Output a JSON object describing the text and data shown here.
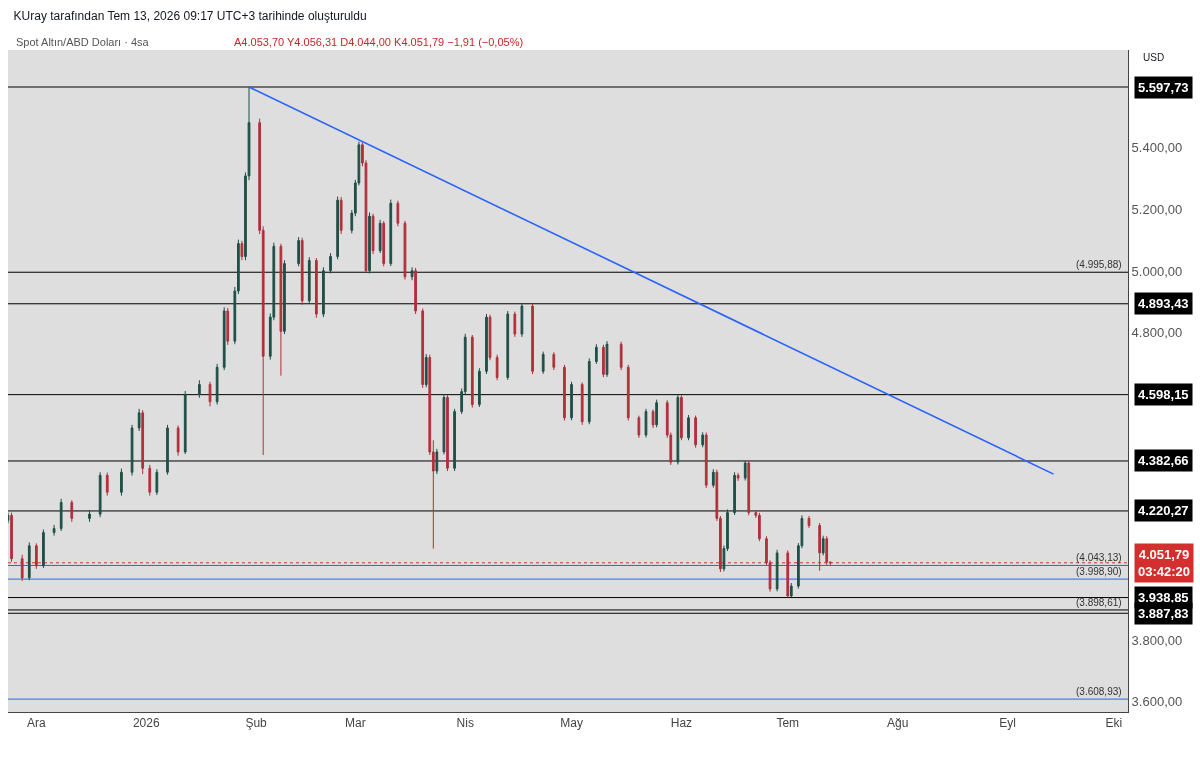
{
  "chart_data": {
    "type": "candlestick",
    "title": "KUray tarafından Tem 13, 2026 09:17 UTC+3 tarihinde oluşturuldu",
    "subtitle": "Spot Altın/ABD Doları · 4sa",
    "annotations": [
      "A4.053,70 Y4.056,31 D4.044,00 K4.051,79 −1,91 (−0,05%)",
      "USD",
      {
        "text": "(4.995,88)",
        "x": "2026-10-04",
        "y": 4995.88
      },
      {
        "text": "(4.043,13)",
        "x": "2026-10-04",
        "y": 4043.13
      },
      {
        "text": "(3.998,90)",
        "x": "2026-10-04",
        "y": 3998.9
      },
      {
        "text": "(3.898,61)",
        "x": "2026-10-04",
        "y": 3898.61
      },
      {
        "text": "(3.608,93)",
        "x": "2026-10-04",
        "y": 3608.93
      }
    ],
    "x": [
      "2025-11-23",
      "2025-11-24",
      "2025-11-27",
      "2025-11-29",
      "2025-12-01",
      "2025-12-03",
      "2025-12-06",
      "2025-12-08",
      "2025-12-11",
      "2025-12-16",
      "2025-12-19",
      "2025-12-21",
      "2025-12-25",
      "2025-12-28",
      "2025-12-30",
      "2025-12-31",
      "2026-01-02",
      "2026-01-04",
      "2026-01-07",
      "2026-01-10",
      "2026-01-12",
      "2026-01-16",
      "2026-01-19",
      "2026-01-21",
      "2026-01-23",
      "2026-01-24",
      "2026-01-26",
      "2026-01-27",
      "2026-01-28",
      "2026-01-29",
      "2026-01-30",
      "2026-02-02",
      "2026-02-03",
      "2026-02-05",
      "2026-02-06",
      "2026-02-08",
      "2026-02-09",
      "2026-02-13",
      "2026-02-14",
      "2026-02-16",
      "2026-02-18",
      "2026-02-20",
      "2026-02-22",
      "2026-02-24",
      "2026-02-25",
      "2026-02-28",
      "2026-03-01",
      "2026-03-02",
      "2026-03-03",
      "2026-03-04",
      "2026-03-05",
      "2026-03-06",
      "2026-03-08",
      "2026-03-09",
      "2026-03-11",
      "2026-03-13",
      "2026-03-15",
      "2026-03-17",
      "2026-03-18",
      "2026-03-20",
      "2026-03-21",
      "2026-03-22",
      "2026-03-23",
      "2026-03-24",
      "2026-03-26",
      "2026-03-27",
      "2026-03-29",
      "2026-03-31",
      "2026-04-01",
      "2026-04-03",
      "2026-04-05",
      "2026-04-07",
      "2026-04-08",
      "2026-04-10",
      "2026-04-13",
      "2026-04-15",
      "2026-04-17",
      "2026-04-20",
      "2026-04-23",
      "2026-04-26",
      "2026-04-29",
      "2026-05-01",
      "2026-05-04",
      "2026-05-06",
      "2026-05-08",
      "2026-05-10",
      "2026-05-11",
      "2026-05-15",
      "2026-05-17",
      "2026-05-20",
      "2026-05-22",
      "2026-05-24",
      "2026-05-25",
      "2026-05-28",
      "2026-05-29",
      "2026-05-31",
      "2026-06-01",
      "2026-06-03",
      "2026-06-05",
      "2026-06-07",
      "2026-06-08",
      "2026-06-10",
      "2026-06-11",
      "2026-06-12",
      "2026-06-13",
      "2026-06-14",
      "2026-06-16",
      "2026-06-17",
      "2026-06-19",
      "2026-06-20",
      "2026-06-22",
      "2026-06-23",
      "2026-06-25",
      "2026-06-26",
      "2026-06-28",
      "2026-07-01",
      "2026-07-02",
      "2026-07-04",
      "2026-07-05",
      "2026-07-07",
      "2026-07-10",
      "2026-07-11",
      "2026-07-12",
      "2026-07-13"
    ],
    "ohlc": [
      [
        4190,
        4215,
        4180,
        4206
      ],
      [
        4206,
        4215,
        4055,
        4065
      ],
      [
        4065,
        4078,
        3993,
        4003
      ],
      [
        4003,
        4118,
        3995,
        4107
      ],
      [
        4107,
        4115,
        4032,
        4042
      ],
      [
        4042,
        4160,
        4035,
        4150
      ],
      [
        4150,
        4175,
        4140,
        4163
      ],
      [
        4163,
        4260,
        4155,
        4248
      ],
      [
        4248,
        4255,
        4185,
        4196
      ],
      [
        4196,
        4222,
        4185,
        4210
      ],
      [
        4210,
        4346,
        4200,
        4336
      ],
      [
        4336,
        4345,
        4270,
        4281
      ],
      [
        4281,
        4358,
        4270,
        4346
      ],
      [
        4346,
        4500,
        4335,
        4490
      ],
      [
        4490,
        4552,
        4480,
        4539
      ],
      [
        4539,
        4548,
        4340,
        4359
      ],
      [
        4359,
        4370,
        4270,
        4281
      ],
      [
        4281,
        4356,
        4272,
        4346
      ],
      [
        4346,
        4500,
        4338,
        4490
      ],
      [
        4490,
        4498,
        4400,
        4412
      ],
      [
        4412,
        4610,
        4405,
        4598
      ],
      [
        4598,
        4645,
        4588,
        4631
      ],
      [
        4631,
        4640,
        4560,
        4575
      ],
      [
        4575,
        4698,
        4566,
        4687
      ],
      [
        4687,
        4882,
        4678,
        4870
      ],
      [
        4870,
        4880,
        4760,
        4772
      ],
      [
        4772,
        4948,
        4762,
        4935
      ],
      [
        4935,
        5102,
        4925,
        5089
      ],
      [
        5089,
        5098,
        5035,
        5047
      ],
      [
        5047,
        5320,
        5035,
        5309
      ],
      [
        5309,
        5597.73,
        5295,
        5482
      ],
      [
        5482,
        5495,
        5120,
        5132
      ],
      [
        5132,
        5145,
        4402,
        4723
      ],
      [
        4723,
        4862,
        4712,
        4850
      ],
      [
        4850,
        5092,
        4840,
        5080
      ],
      [
        5080,
        5088,
        4660,
        4804
      ],
      [
        4804,
        5035,
        4795,
        5024
      ],
      [
        5024,
        5110,
        5015,
        5099
      ],
      [
        5099,
        5108,
        4890,
        4903
      ],
      [
        4903,
        5045,
        4895,
        5034
      ],
      [
        5034,
        5042,
        4848,
        4860
      ],
      [
        4860,
        5012,
        4850,
        5001
      ],
      [
        5001,
        5058,
        4992,
        5047
      ],
      [
        5047,
        5242,
        5038,
        5230
      ],
      [
        5230,
        5240,
        5120,
        5132
      ],
      [
        5132,
        5198,
        5122,
        5188
      ],
      [
        5188,
        5296,
        5178,
        5286
      ],
      [
        5286,
        5420,
        5278,
        5410
      ],
      [
        5410,
        5418,
        5340,
        5351
      ],
      [
        5351,
        5360,
        4995.88,
        5001
      ],
      [
        5001,
        5190,
        4992,
        5178
      ],
      [
        5178,
        5186,
        5055,
        5066
      ],
      [
        5066,
        5166,
        5058,
        5155
      ],
      [
        5155,
        5162,
        5015,
        5024
      ],
      [
        5024,
        5232,
        5016,
        5220
      ],
      [
        5220,
        5228,
        5145,
        5155
      ],
      [
        5155,
        5163,
        4972,
        4981
      ],
      [
        4981,
        5012,
        4970,
        5001
      ],
      [
        5001,
        5010,
        4860,
        4870
      ],
      [
        4870,
        4878,
        4620,
        4631
      ],
      [
        4631,
        4730,
        4622,
        4719
      ],
      [
        4719,
        4728,
        4402,
        4412
      ],
      [
        4412,
        4450,
        4098,
        4350
      ],
      [
        4350,
        4422,
        4340,
        4412
      ],
      [
        4412,
        4600,
        4404,
        4589
      ],
      [
        4589,
        4596,
        4350,
        4359
      ],
      [
        4359,
        4552,
        4350,
        4543
      ],
      [
        4543,
        4618,
        4535,
        4608
      ],
      [
        4608,
        4796,
        4600,
        4785
      ],
      [
        4785,
        4792,
        4556,
        4566
      ],
      [
        4566,
        4684,
        4558,
        4674
      ],
      [
        4674,
        4860,
        4665,
        4850
      ],
      [
        4850,
        4858,
        4710,
        4719
      ],
      [
        4719,
        4728,
        4645,
        4654
      ],
      [
        4654,
        4870,
        4646,
        4860
      ],
      [
        4860,
        4868,
        4786,
        4795
      ],
      [
        4795,
        4893.43,
        4786,
        4886
      ],
      [
        4886,
        4893,
        4665,
        4674
      ],
      [
        4674,
        4738,
        4666,
        4729
      ],
      [
        4729,
        4736,
        4678,
        4687
      ],
      [
        4687,
        4695,
        4514,
        4523
      ],
      [
        4523,
        4640,
        4515,
        4631
      ],
      [
        4631,
        4638,
        4500,
        4510
      ],
      [
        4510,
        4716,
        4502,
        4706
      ],
      [
        4706,
        4762,
        4698,
        4752
      ],
      [
        4752,
        4760,
        4655,
        4664
      ],
      [
        4664,
        4772,
        4656,
        4762
      ],
      [
        4762,
        4770,
        4678,
        4687
      ],
      [
        4687,
        4695,
        4514,
        4523
      ],
      [
        4523,
        4530,
        4458,
        4467
      ],
      [
        4467,
        4552,
        4459,
        4543
      ],
      [
        4543,
        4550,
        4490,
        4500
      ],
      [
        4500,
        4582,
        4492,
        4572
      ],
      [
        4572,
        4580,
        4458,
        4467
      ],
      [
        4467,
        4475,
        4370,
        4379
      ],
      [
        4379,
        4598.15,
        4371,
        4589
      ],
      [
        4589,
        4596,
        4450,
        4458
      ],
      [
        4458,
        4532,
        4450,
        4523
      ],
      [
        4523,
        4530,
        4426,
        4435
      ],
      [
        4435,
        4476,
        4427,
        4467
      ],
      [
        4467,
        4475,
        4295,
        4304
      ],
      [
        4304,
        4356,
        4296,
        4346
      ],
      [
        4346,
        4354,
        4188,
        4196
      ],
      [
        4196,
        4204,
        4022,
        4032
      ],
      [
        4032,
        4108,
        4024,
        4098
      ],
      [
        4098,
        4225,
        4090,
        4215
      ],
      [
        4215,
        4346,
        4207,
        4336
      ],
      [
        4336,
        4344,
        4318,
        4327
      ],
      [
        4327,
        4382.66,
        4319,
        4376
      ],
      [
        4376,
        4384,
        4206,
        4215
      ],
      [
        4215,
        4222,
        4198,
        4206
      ],
      [
        4206,
        4214,
        4122,
        4130
      ],
      [
        4130,
        4138,
        4044,
        4052
      ],
      [
        4052,
        4060,
        3958,
        3967
      ],
      [
        3967,
        4094,
        3959,
        4084
      ],
      [
        4084,
        4092,
        3938.85,
        3944
      ],
      [
        3944,
        3986,
        3940,
        3976
      ],
      [
        3976,
        4116,
        3968,
        4107
      ],
      [
        4107,
        4206,
        4099,
        4196
      ],
      [
        4196,
        4204,
        4165,
        4173
      ],
      [
        4173,
        4181,
        4026,
        4084
      ],
      [
        4084,
        4140,
        4076,
        4130
      ],
      [
        4130,
        4138,
        4045,
        4053.7
      ],
      [
        4053.7,
        4056.31,
        4044.0,
        4051.79
      ]
    ],
    "series": [
      {
        "type": "line",
        "color": "#2962ff",
        "x": [
          "2026-01-30",
          "2026-09-14"
        ],
        "values": [
          5598,
          4340
        ]
      }
    ],
    "ref_lines": [
      {
        "axis": "y",
        "value": 5597.73,
        "label": "5.597,73",
        "color": "#000000"
      },
      {
        "axis": "y",
        "value": 4995.88,
        "color": "#000000"
      },
      {
        "axis": "y",
        "value": 4893.43,
        "label": "4.893,43",
        "color": "#000000"
      },
      {
        "axis": "y",
        "value": 4598.15,
        "label": "4.598,15",
        "color": "#000000"
      },
      {
        "axis": "y",
        "value": 4382.66,
        "label": "4.382,66",
        "color": "#000000"
      },
      {
        "axis": "y",
        "value": 4220.27,
        "label": "4.220,27",
        "color": "#000000"
      },
      {
        "axis": "y",
        "value": 4051.79,
        "label": "4.051,79\n03:42:20",
        "color": "#d32f2f",
        "line_style": "dotted"
      },
      {
        "axis": "y",
        "value": 4043.13,
        "color": "#2962ff"
      },
      {
        "axis": "y",
        "value": 3998.9,
        "color": "#2962ff"
      },
      {
        "axis": "y",
        "value": 3938.85,
        "label": "3.938,85",
        "color": "#000000"
      },
      {
        "axis": "y",
        "value": 3898.61,
        "color": "#000000"
      },
      {
        "axis": "y",
        "value": 3887.83,
        "label": "3.887,83",
        "color": "#000000"
      },
      {
        "axis": "y",
        "value": 3608.93,
        "color": "#2962ff"
      }
    ],
    "xlim": [
      "2025-11-23",
      "2026-10-05"
    ],
    "xticks": [
      {
        "value": "2025-12-01",
        "label": "Ara"
      },
      {
        "value": "2026-01-01",
        "label": "2026"
      },
      {
        "value": "2026-02-01",
        "label": "Şub"
      },
      {
        "value": "2026-03-01",
        "label": "Mar"
      },
      {
        "value": "2026-04-01",
        "label": "Nis"
      },
      {
        "value": "2026-05-01",
        "label": "May"
      },
      {
        "value": "2026-06-01",
        "label": "Haz"
      },
      {
        "value": "2026-07-01",
        "label": "Tem"
      },
      {
        "value": "2026-08-01",
        "label": "Ağu"
      },
      {
        "value": "2026-09-01",
        "label": "Eyl"
      },
      {
        "value": "2026-10-01",
        "label": "Eki"
      }
    ],
    "ylim": [
      3567,
      5718
    ],
    "yticks": [
      {
        "value": 3600,
        "label": "3.600,00"
      },
      {
        "value": 3800,
        "label": "3.800,00"
      },
      {
        "value": 4800,
        "label": "4.800,00"
      },
      {
        "value": 5000,
        "label": "5.000,00"
      },
      {
        "value": 5200,
        "label": "5.200,00"
      },
      {
        "value": 5400,
        "label": "5.400,00"
      }
    ],
    "grid": false
  }
}
